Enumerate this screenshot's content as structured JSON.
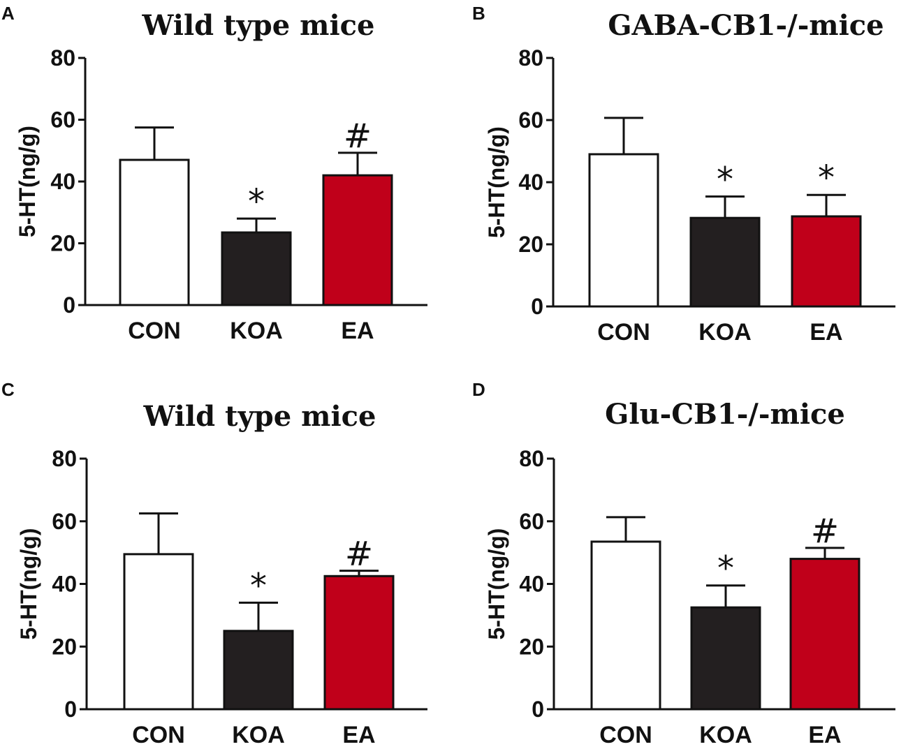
{
  "chart_data": [
    {
      "type": "bar",
      "panel": "A",
      "title": "Wild type mice",
      "ylabel": "5-HT(ng/g)",
      "xlabel": "",
      "ylim": [
        0,
        80
      ],
      "yticks": [
        0,
        20,
        40,
        60,
        80
      ],
      "categories": [
        "CON",
        "KOA",
        "EA"
      ],
      "values": [
        47,
        23.5,
        42
      ],
      "errors": [
        10.5,
        4.5,
        7.3
      ],
      "annotations": [
        "",
        "*",
        "#"
      ],
      "colors": [
        "#ffffff",
        "#231f20",
        "#c0001a"
      ]
    },
    {
      "type": "bar",
      "panel": "B",
      "title": "GABA-CB1-/-mice",
      "ylabel": "5-HT(ng/g)",
      "xlabel": "",
      "ylim": [
        0,
        80
      ],
      "yticks": [
        0,
        20,
        40,
        60,
        80
      ],
      "categories": [
        "CON",
        "KOA",
        "EA"
      ],
      "values": [
        49,
        28.5,
        29
      ],
      "errors": [
        11.7,
        6.9,
        6.9
      ],
      "annotations": [
        "",
        "*",
        "*"
      ],
      "colors": [
        "#ffffff",
        "#231f20",
        "#c0001a"
      ]
    },
    {
      "type": "bar",
      "panel": "C",
      "title": "Wild type mice",
      "ylabel": "5-HT(ng/g)",
      "xlabel": "",
      "ylim": [
        0,
        80
      ],
      "yticks": [
        0,
        20,
        40,
        60,
        80
      ],
      "categories": [
        "CON",
        "KOA",
        "EA"
      ],
      "values": [
        49.5,
        25,
        42.5
      ],
      "errors": [
        13,
        9,
        1.7
      ],
      "annotations": [
        "",
        "*",
        "#"
      ],
      "colors": [
        "#ffffff",
        "#231f20",
        "#c0001a"
      ]
    },
    {
      "type": "bar",
      "panel": "D",
      "title": "Glu-CB1-/-mice",
      "ylabel": "5-HT(ng/g)",
      "xlabel": "",
      "ylim": [
        0,
        80
      ],
      "yticks": [
        0,
        20,
        40,
        60,
        80
      ],
      "categories": [
        "CON",
        "KOA",
        "EA"
      ],
      "values": [
        53.5,
        32.5,
        48
      ],
      "errors": [
        7.8,
        7,
        3.5
      ],
      "annotations": [
        "",
        "*",
        "#"
      ],
      "colors": [
        "#ffffff",
        "#231f20",
        "#c0001a"
      ]
    }
  ]
}
